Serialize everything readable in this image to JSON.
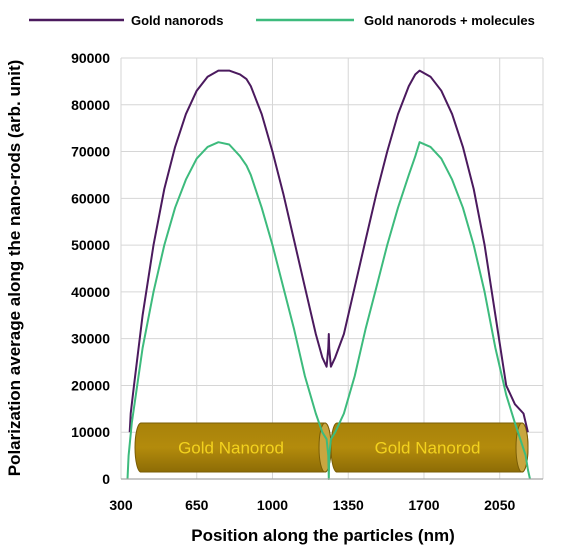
{
  "chart_data": {
    "type": "line",
    "title": "",
    "xlabel": "Position along the particles (nm)",
    "ylabel": "Polarization average along the nano-rods (arb. unit)",
    "xlim": [
      300,
      2250
    ],
    "ylim": [
      0,
      90000
    ],
    "xticks": [
      300,
      650,
      1000,
      1350,
      1700,
      2050
    ],
    "yticks": [
      0,
      10000,
      20000,
      30000,
      40000,
      50000,
      60000,
      70000,
      80000,
      90000
    ],
    "grid": "on",
    "legend_position": "top",
    "annotations": [
      "Gold Nanorod",
      "Gold Nanorod"
    ],
    "series": [
      {
        "name": "Gold nanorods",
        "color": "#4b1a5e",
        "x": [
          340,
          345,
          360,
          400,
          450,
          500,
          550,
          600,
          650,
          700,
          750,
          800,
          850,
          880,
          900,
          950,
          1000,
          1050,
          1100,
          1150,
          1200,
          1230,
          1250,
          1258,
          1260,
          1262,
          1270,
          1290,
          1330,
          1380,
          1430,
          1480,
          1530,
          1580,
          1630,
          1660,
          1680,
          1730,
          1780,
          1830,
          1880,
          1930,
          1980,
          2030,
          2080,
          2120,
          2160,
          2180
        ],
        "y": [
          10000,
          14000,
          20000,
          35000,
          50000,
          62000,
          71000,
          78000,
          83000,
          86000,
          87300,
          87300,
          86500,
          85500,
          84000,
          78000,
          70000,
          61000,
          51000,
          41000,
          31000,
          26000,
          24000,
          28000,
          31000,
          28000,
          24000,
          26000,
          31000,
          41000,
          51000,
          61000,
          70000,
          78000,
          84000,
          86500,
          87300,
          86000,
          83000,
          78000,
          71000,
          62000,
          50000,
          35000,
          20000,
          16000,
          14000,
          10000
        ]
      },
      {
        "name": "Gold nanorods + molecules",
        "color": "#3dbb7d",
        "x": [
          330,
          335,
          350,
          400,
          450,
          500,
          550,
          600,
          650,
          700,
          750,
          800,
          850,
          880,
          900,
          950,
          1000,
          1050,
          1100,
          1150,
          1200,
          1230,
          1250,
          1258,
          1260,
          1262,
          1270,
          1290,
          1330,
          1380,
          1430,
          1480,
          1530,
          1580,
          1630,
          1660,
          1680,
          1730,
          1780,
          1830,
          1880,
          1930,
          1980,
          2030,
          2080,
          2120,
          2170,
          2180,
          2190
        ],
        "y": [
          0,
          5000,
          12000,
          28000,
          40000,
          50000,
          58000,
          64000,
          68500,
          71000,
          72000,
          71500,
          69000,
          67000,
          65000,
          58000,
          50000,
          41000,
          32000,
          22000,
          14000,
          10000,
          8500,
          5000,
          0,
          5000,
          8500,
          10000,
          14000,
          22000,
          32000,
          41000,
          50000,
          58000,
          65000,
          69000,
          72000,
          71000,
          68500,
          64000,
          58000,
          50000,
          40000,
          28000,
          18000,
          12000,
          5000,
          2000,
          0
        ]
      }
    ]
  }
}
